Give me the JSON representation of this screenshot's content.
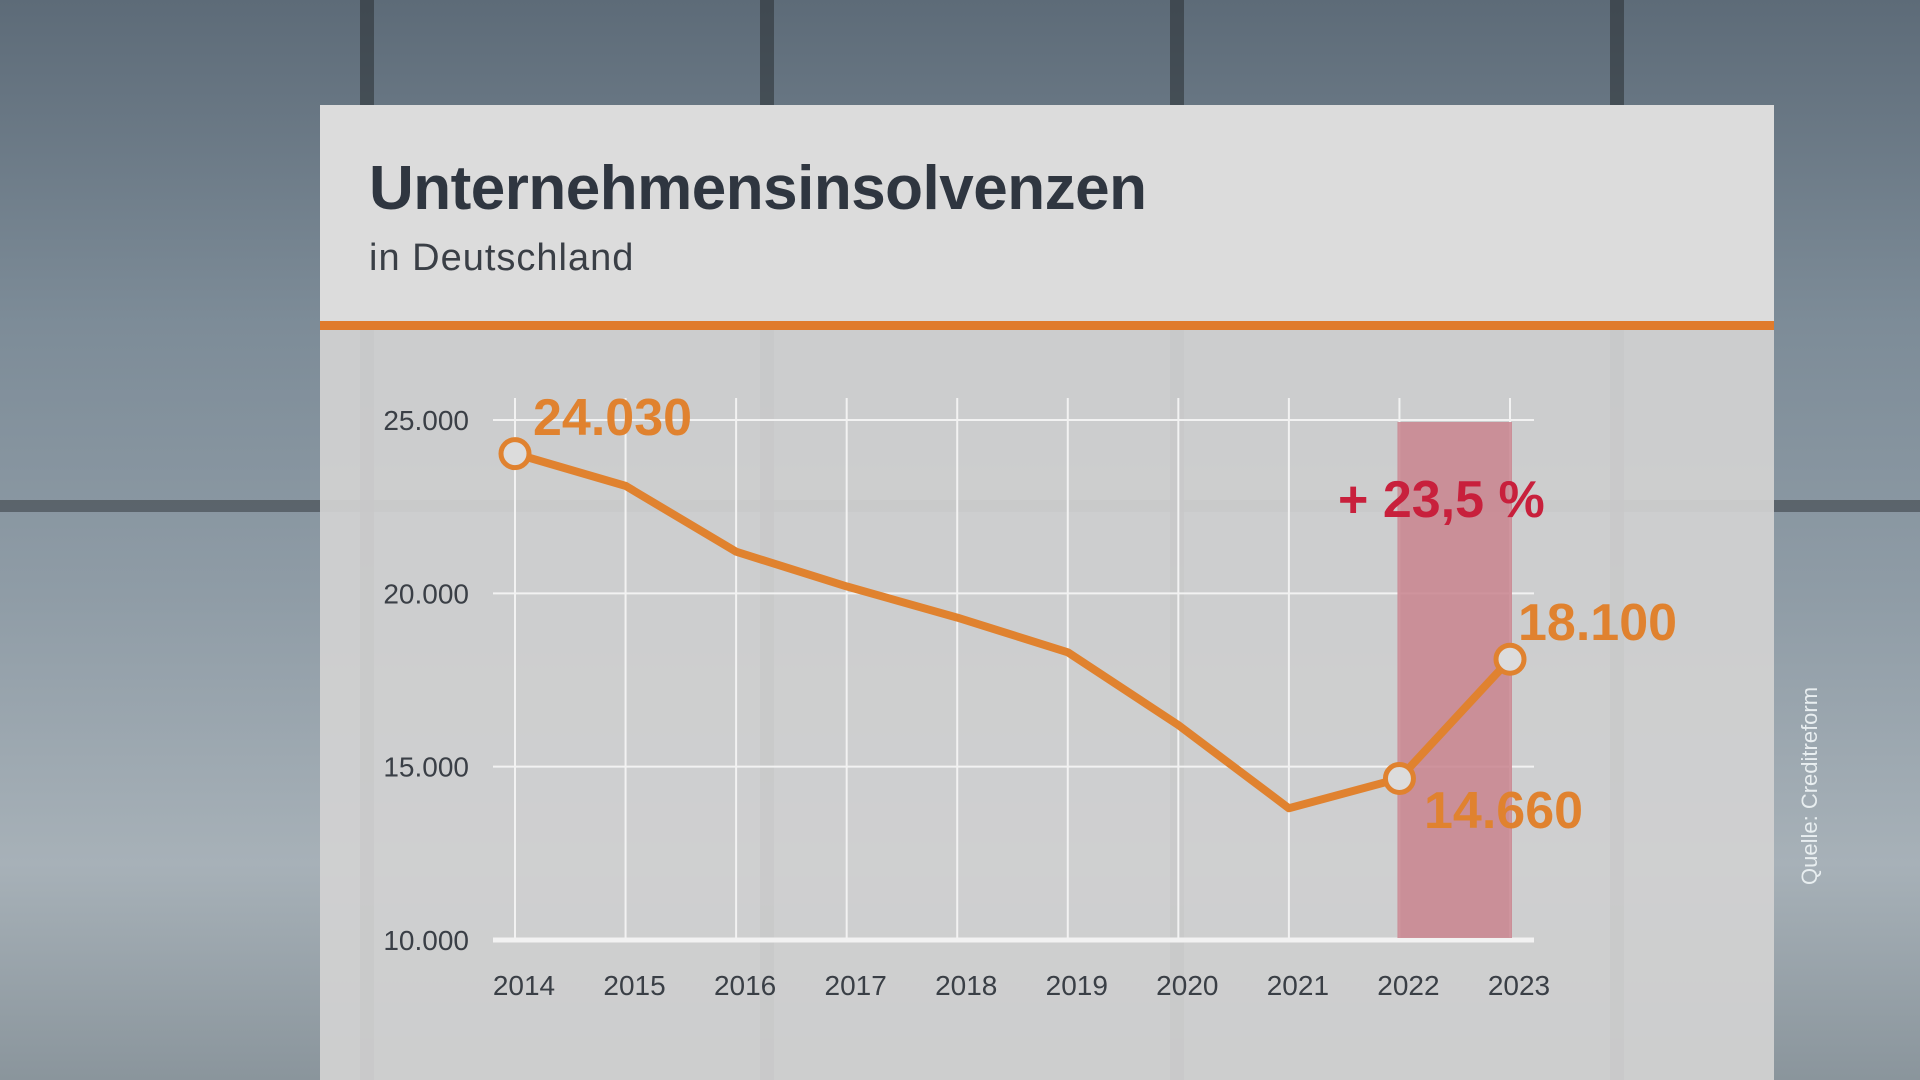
{
  "header": {
    "title": "Unternehmensinsolvenzen",
    "subtitle": "in Deutschland"
  },
  "source": "Quelle: Creditreform",
  "colors": {
    "accent": "#e07b2c",
    "line": "#e0822f",
    "highlight": "#c9848e",
    "change": "#c8203c"
  },
  "chart_data": {
    "type": "line",
    "title": "Unternehmensinsolvenzen",
    "subtitle": "in Deutschland",
    "xlabel": "",
    "ylabel": "",
    "categories": [
      "2014",
      "2015",
      "2016",
      "2017",
      "2018",
      "2019",
      "2020",
      "2021",
      "2022",
      "2023"
    ],
    "values": [
      24030,
      23100,
      21200,
      20200,
      19300,
      18300,
      16200,
      13800,
      14660,
      18100
    ],
    "ylim": [
      10000,
      25000
    ],
    "yticks": [
      25000,
      20000,
      15000,
      10000
    ],
    "ytick_labels": [
      "25.000",
      "20.000",
      "15.000",
      "10.000"
    ],
    "grid": true,
    "highlight_range": [
      "2022",
      "2023"
    ],
    "annotations": {
      "first": "24.030",
      "y2022": "14.660",
      "y2023": "18.100",
      "change": "+ 23,5 %"
    }
  }
}
